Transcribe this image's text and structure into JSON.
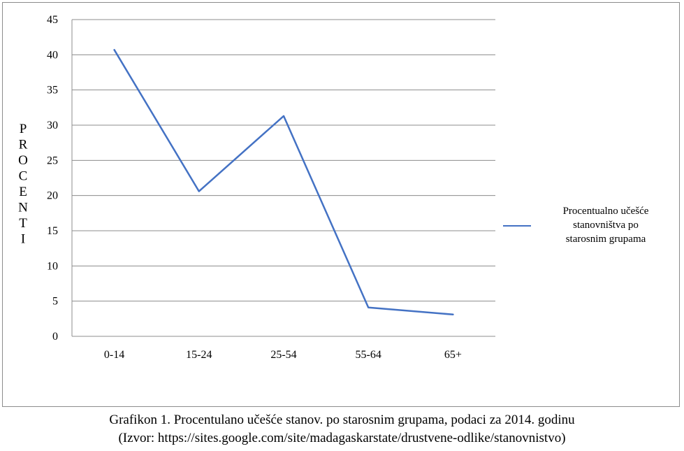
{
  "chart_data": {
    "type": "line",
    "categories": [
      "0-14",
      "15-24",
      "25-54",
      "55-64",
      "65+"
    ],
    "series": [
      {
        "name": "Procentualno učešće stanovništva po starosnim grupama",
        "values": [
          40.7,
          20.6,
          31.3,
          4.1,
          3.1
        ],
        "color": "#4472c4"
      }
    ],
    "ylabel": "PROCENTI",
    "xlabel": "",
    "ylim": [
      0,
      45
    ],
    "yticks": [
      0,
      5,
      10,
      15,
      20,
      25,
      30,
      35,
      40,
      45
    ],
    "grid": true,
    "legend_position": "right",
    "legend_lines": [
      "Procentualno učešće",
      "stanovništva po",
      "starosnim grupama"
    ]
  },
  "caption": {
    "line1": "Grafikon 1. Procentulano učešće stanov. po starosnim grupama, podaci za 2014. godinu",
    "line2": "(Izvor: https://sites.google.com/site/madagaskarstate/drustvene-odlike/stanovnistvo)"
  }
}
